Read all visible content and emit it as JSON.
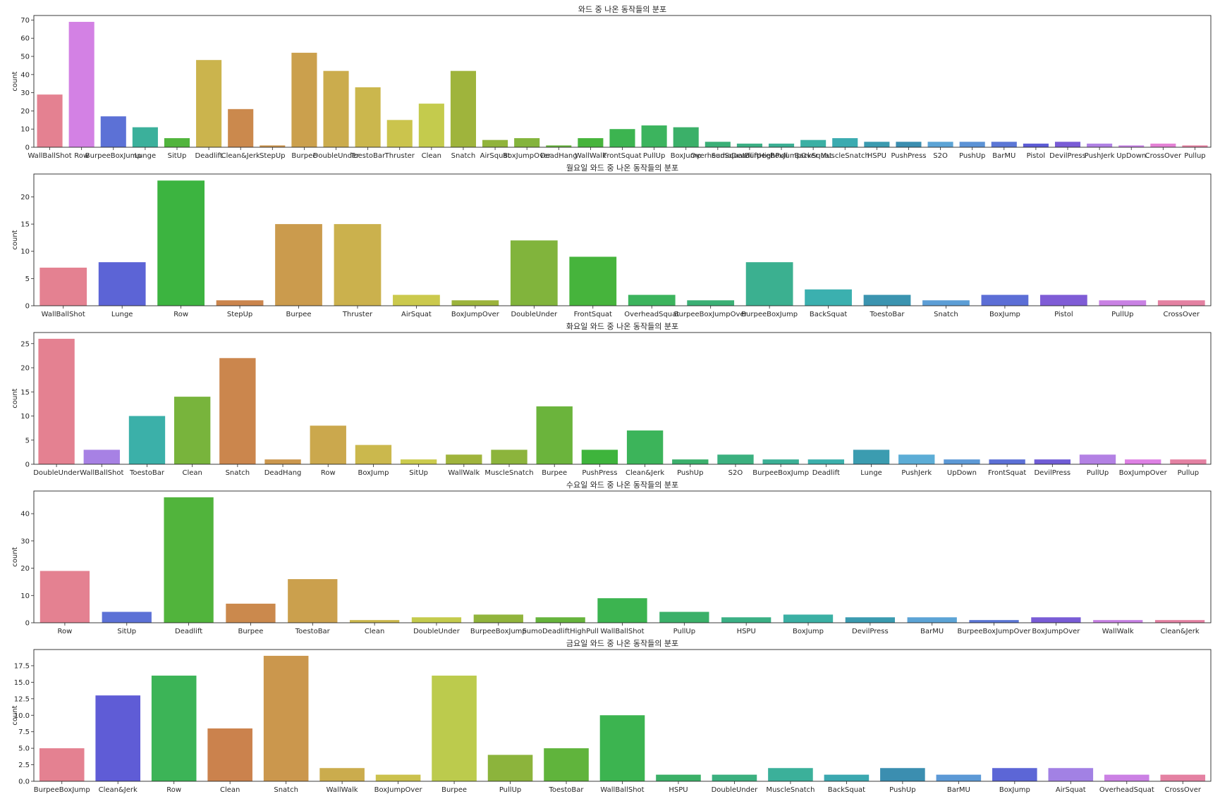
{
  "chart_data": [
    {
      "type": "bar",
      "title": "와드 중 나온 동작들의 분포",
      "ylabel": "count",
      "xlabel": "",
      "ylim": [
        0,
        72.5
      ],
      "yticks": [
        0,
        10,
        20,
        30,
        40,
        50,
        60,
        70
      ],
      "ytick_labels": [
        "0",
        "10",
        "20",
        "30",
        "40",
        "50",
        "60",
        "70"
      ],
      "categories": [
        "WallBallShot",
        "Row",
        "BurpeeBoxJump",
        "Lunge",
        "SitUp",
        "Deadlift",
        "Clean&Jerk",
        "StepUp",
        "Burpee",
        "DoubleUnder",
        "ToestoBar",
        "Thruster",
        "Clean",
        "Snatch",
        "AirSquat",
        "BoxJumpOver",
        "DeadHang",
        "WallWalk",
        "FrontSquat",
        "PullUp",
        "BoxJump",
        "OverheadSquat",
        "SumoDeadliftHighPull",
        "BurpeeBoxJumpOver",
        "BackSquat",
        "MuscleSnatch",
        "HSPU",
        "PushPress",
        "S2O",
        "PushUp",
        "BarMU",
        "Pistol",
        "DevilPress",
        "PushJerk",
        "UpDown",
        "CrossOver",
        "Pullup"
      ],
      "values": [
        29,
        69,
        17,
        11,
        5,
        48,
        21,
        1,
        52,
        42,
        33,
        15,
        24,
        42,
        4,
        5,
        1,
        5,
        10,
        12,
        11,
        3,
        2,
        2,
        4,
        5,
        3,
        3,
        3,
        3,
        3,
        2,
        3,
        2,
        1,
        2,
        1
      ]
    },
    {
      "type": "bar",
      "title": "월요일 와드 중 나온 동작들의 분포",
      "ylabel": "count",
      "xlabel": "",
      "ylim": [
        0,
        24.2
      ],
      "yticks": [
        0,
        5,
        10,
        15,
        20
      ],
      "ytick_labels": [
        "0",
        "5",
        "10",
        "15",
        "20"
      ],
      "categories": [
        "WallBallShot",
        "Lunge",
        "Row",
        "StepUp",
        "Burpee",
        "Thruster",
        "AirSquat",
        "BoxJumpOver",
        "DoubleUnder",
        "FrontSquat",
        "OverheadSquat",
        "BurpeeBoxJumpOver",
        "BurpeeBoxJump",
        "BackSquat",
        "ToestoBar",
        "Snatch",
        "BoxJump",
        "Pistol",
        "PullUp",
        "CrossOver"
      ],
      "values": [
        7,
        8,
        23,
        1,
        15,
        15,
        2,
        1,
        12,
        9,
        2,
        1,
        8,
        3,
        2,
        1,
        2,
        2,
        1,
        1
      ]
    },
    {
      "type": "bar",
      "title": "화요일 와드 중 나온 동작들의 분포",
      "ylabel": "count",
      "xlabel": "",
      "ylim": [
        0,
        27.3
      ],
      "yticks": [
        0,
        5,
        10,
        15,
        20,
        25
      ],
      "ytick_labels": [
        "0",
        "5",
        "10",
        "15",
        "20",
        "25"
      ],
      "categories": [
        "DoubleUnder",
        "WallBallShot",
        "ToestoBar",
        "Clean",
        "Snatch",
        "DeadHang",
        "Row",
        "BoxJump",
        "SitUp",
        "WallWalk",
        "MuscleSnatch",
        "Burpee",
        "PushPress",
        "Clean&Jerk",
        "PushUp",
        "S2O",
        "BurpeeBoxJump",
        "Deadlift",
        "Lunge",
        "PushJerk",
        "UpDown",
        "FrontSquat",
        "DevilPress",
        "PullUp",
        "BoxJumpOver",
        "Pullup"
      ],
      "values": [
        26,
        3,
        10,
        14,
        22,
        1,
        8,
        4,
        1,
        2,
        3,
        12,
        3,
        7,
        1,
        2,
        1,
        1,
        3,
        2,
        1,
        1,
        1,
        2,
        1,
        1
      ]
    },
    {
      "type": "bar",
      "title": "수요일 와드 중 나온 동작들의 분포",
      "ylabel": "count",
      "xlabel": "",
      "ylim": [
        0,
        48.3
      ],
      "yticks": [
        0,
        10,
        20,
        30,
        40
      ],
      "ytick_labels": [
        "0",
        "10",
        "20",
        "30",
        "40"
      ],
      "categories": [
        "Row",
        "SitUp",
        "Deadlift",
        "Burpee",
        "ToestoBar",
        "Clean",
        "DoubleUnder",
        "BurpeeBoxJump",
        "SumoDeadliftHighPull",
        "WallBallShot",
        "PullUp",
        "HSPU",
        "BoxJump",
        "DevilPress",
        "BarMU",
        "BurpeeBoxJumpOver",
        "BoxJumpOver",
        "WallWalk",
        "Clean&Jerk"
      ],
      "values": [
        19,
        4,
        46,
        7,
        16,
        1,
        2,
        3,
        2,
        9,
        4,
        2,
        3,
        2,
        2,
        1,
        2,
        1,
        1
      ]
    },
    {
      "type": "bar",
      "title": "금요일 와드 중 나온 동작들의 분포",
      "ylabel": "count",
      "xlabel": "",
      "ylim": [
        0,
        19.95
      ],
      "yticks": [
        0,
        2.5,
        5,
        7.5,
        10,
        12.5,
        15,
        17.5
      ],
      "ytick_labels": [
        "0.0",
        "2.5",
        "5.0",
        "7.5",
        "10.0",
        "12.5",
        "15.0",
        "17.5"
      ],
      "categories": [
        "BurpeeBoxJump",
        "Clean&Jerk",
        "Row",
        "Clean",
        "Snatch",
        "WallWalk",
        "BoxJumpOver",
        "Burpee",
        "PullUp",
        "ToestoBar",
        "WallBallShot",
        "HSPU",
        "DoubleUnder",
        "MuscleSnatch",
        "BackSquat",
        "PushUp",
        "BarMU",
        "BoxJump",
        "AirSquat",
        "OverheadSquat",
        "CrossOver"
      ],
      "values": [
        5,
        13,
        16,
        8,
        19,
        2,
        1,
        16,
        4,
        5,
        10,
        1,
        1,
        2,
        1,
        2,
        1,
        2,
        2,
        1,
        1
      ]
    }
  ]
}
